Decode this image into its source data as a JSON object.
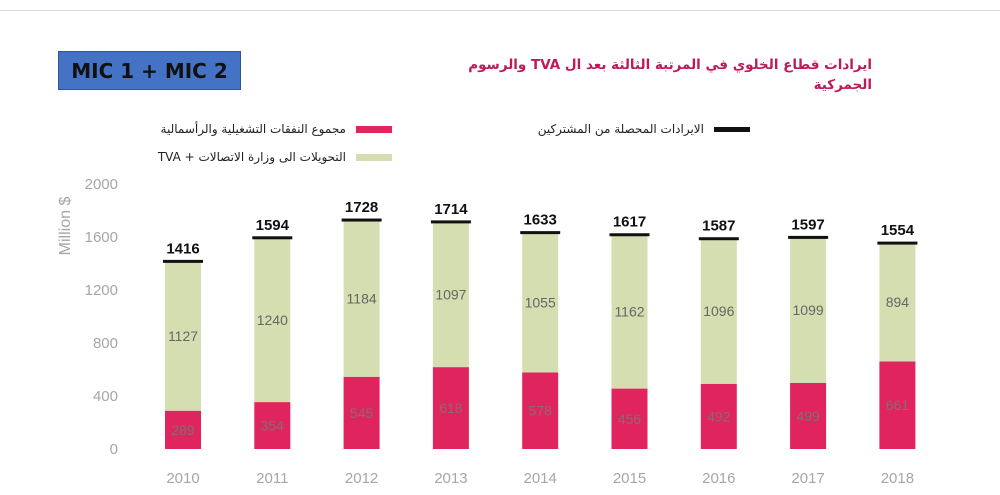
{
  "badge": "MIC 1 + MIC 2",
  "chart_data": {
    "type": "bar",
    "stacked": true,
    "title": "ايرادات قطاع الخلوي في المرتبة الثالثة بعد ال TVA والرسوم الجمركية",
    "ylabel": "Million $",
    "xlabel": "",
    "ylim": [
      0,
      2000
    ],
    "yticks": [
      0,
      400,
      800,
      1200,
      1600,
      2000
    ],
    "categories": [
      "2010",
      "2011",
      "2012",
      "2013",
      "2014",
      "2015",
      "2016",
      "2017",
      "2018"
    ],
    "series": [
      {
        "name": "مجموع النفقات التشغيلية والرأسمالية",
        "color": "#e0245e",
        "values": [
          289,
          354,
          545,
          618,
          578,
          456,
          492,
          499,
          661
        ]
      },
      {
        "name": "التحويلات الى وزارة الاتصالات + TVA",
        "color": "#d4deb0",
        "values": [
          1127,
          1240,
          1184,
          1097,
          1055,
          1162,
          1096,
          1099,
          894
        ]
      }
    ],
    "totals": {
      "name": "الايرادات المحصلة من المشتركين",
      "color": "#111111",
      "values": [
        1416,
        1594,
        1728,
        1714,
        1633,
        1617,
        1587,
        1597,
        1554
      ]
    },
    "legend_position": "top",
    "grid": false
  }
}
